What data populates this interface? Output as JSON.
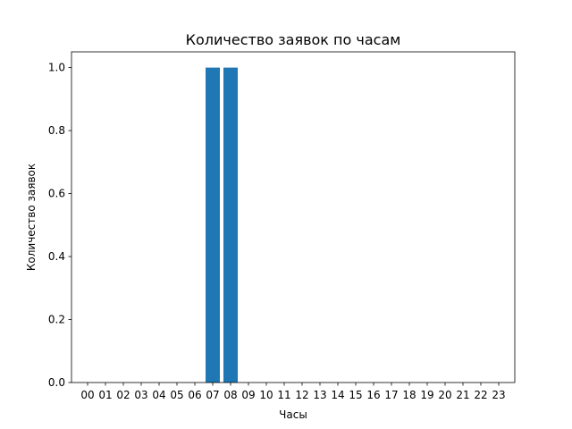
{
  "chart_data": {
    "type": "bar",
    "title": "Количество заявок по часам",
    "xlabel": "Часы",
    "ylabel": "Количество заявок",
    "categories": [
      "00",
      "01",
      "02",
      "03",
      "04",
      "05",
      "06",
      "07",
      "08",
      "09",
      "10",
      "11",
      "12",
      "13",
      "14",
      "15",
      "16",
      "17",
      "18",
      "19",
      "20",
      "21",
      "22",
      "23"
    ],
    "values": [
      0,
      0,
      0,
      0,
      0,
      0,
      0,
      1,
      1,
      0,
      0,
      0,
      0,
      0,
      0,
      0,
      0,
      0,
      0,
      0,
      0,
      0,
      0,
      0
    ],
    "ylim": [
      0,
      1.05
    ],
    "yticks": [
      "0.0",
      "0.2",
      "0.4",
      "0.6",
      "0.8",
      "1.0"
    ],
    "grid": false,
    "bar_color": "#1f77b4"
  }
}
